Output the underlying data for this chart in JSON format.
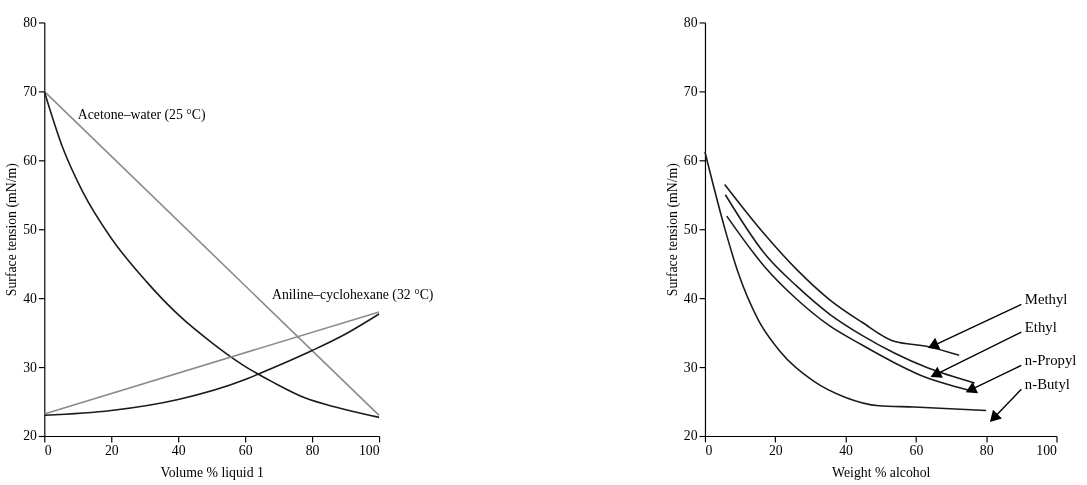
{
  "chart_data": [
    {
      "type": "line",
      "xlabel": "Volume % liquid 1",
      "ylabel": "Surface tension (mN/m)",
      "xlim": [
        0,
        100
      ],
      "ylim": [
        20,
        80
      ],
      "xticks": [
        0,
        20,
        40,
        60,
        80,
        100
      ],
      "yticks": [
        20,
        30,
        40,
        50,
        60,
        70,
        80
      ],
      "grid": false,
      "marker": "none",
      "line_style": "solid",
      "series": [
        {
          "color": "#8a8a8a",
          "x": [
            0,
            100
          ],
          "values": [
            70,
            23
          ]
        },
        {
          "color": "#1a1a1a",
          "x": [
            0,
            5.6,
            11.4,
            20,
            30.5,
            40,
            49.6,
            59,
            68.7,
            78,
            87.8,
            100
          ],
          "values": [
            70,
            61.7,
            55.5,
            48.7,
            42.4,
            37.6,
            33.7,
            30.4,
            27.7,
            25.5,
            24.1,
            22.7
          ]
        },
        {
          "color": "#8a8a8a",
          "x": [
            0,
            100
          ],
          "values": [
            23.2,
            38
          ]
        },
        {
          "color": "#1a1a1a",
          "x": [
            0,
            20,
            40,
            60,
            64,
            80,
            90,
            100
          ],
          "values": [
            23,
            23.7,
            25.3,
            28.2,
            29,
            32.4,
            34.8,
            37.7
          ]
        }
      ],
      "annotations": [
        "Acetone–water (25 °C)",
        "Aniline–cyclohexane (32 °C)"
      ]
    },
    {
      "type": "line",
      "xlabel": "Weight % alcohol",
      "ylabel": "Surface tension (mN/m)",
      "xlim": [
        0,
        100
      ],
      "ylim": [
        20,
        80
      ],
      "xticks": [
        0,
        20,
        40,
        60,
        80,
        100
      ],
      "yticks": [
        20,
        30,
        40,
        50,
        60,
        70,
        80
      ],
      "grid": false,
      "marker": "none",
      "line_style": "solid",
      "series": [
        {
          "name": "Methyl",
          "color": "#1a1a1a",
          "x": [
            5.6,
            16.9,
            26.2,
            35.4,
            44.7,
            54,
            63.3,
            72.3
          ],
          "values": [
            56.5,
            49.3,
            44.1,
            39.8,
            36.5,
            33.7,
            33,
            31.7
          ]
        },
        {
          "name": "Ethyl",
          "color": "#1a1a1a",
          "x": [
            5.8,
            16.9,
            26.2,
            35.4,
            44.7,
            54,
            63.3,
            76.7
          ],
          "values": [
            55,
            46.5,
            41.7,
            37.7,
            34.6,
            32,
            29.9,
            27.7
          ]
        },
        {
          "name": "n-Propyl",
          "color": "#1a1a1a",
          "x": [
            6.2,
            16.9,
            26.2,
            35.4,
            44.7,
            54,
            63.3,
            72.5,
            76.3
          ],
          "values": [
            51.9,
            44.6,
            39.8,
            36,
            33.2,
            30.6,
            28.4,
            27,
            26.5
          ]
        },
        {
          "name": "n-Butyl",
          "color": "#1a1a1a",
          "x": [
            0,
            5.8,
            9.5,
            15,
            21.5,
            30.8,
            40,
            49.4,
            59.5,
            80
          ],
          "values": [
            61.2,
            49.8,
            43.6,
            37,
            32.2,
            28,
            25.6,
            24.4,
            24.2,
            23.7
          ]
        }
      ]
    }
  ]
}
